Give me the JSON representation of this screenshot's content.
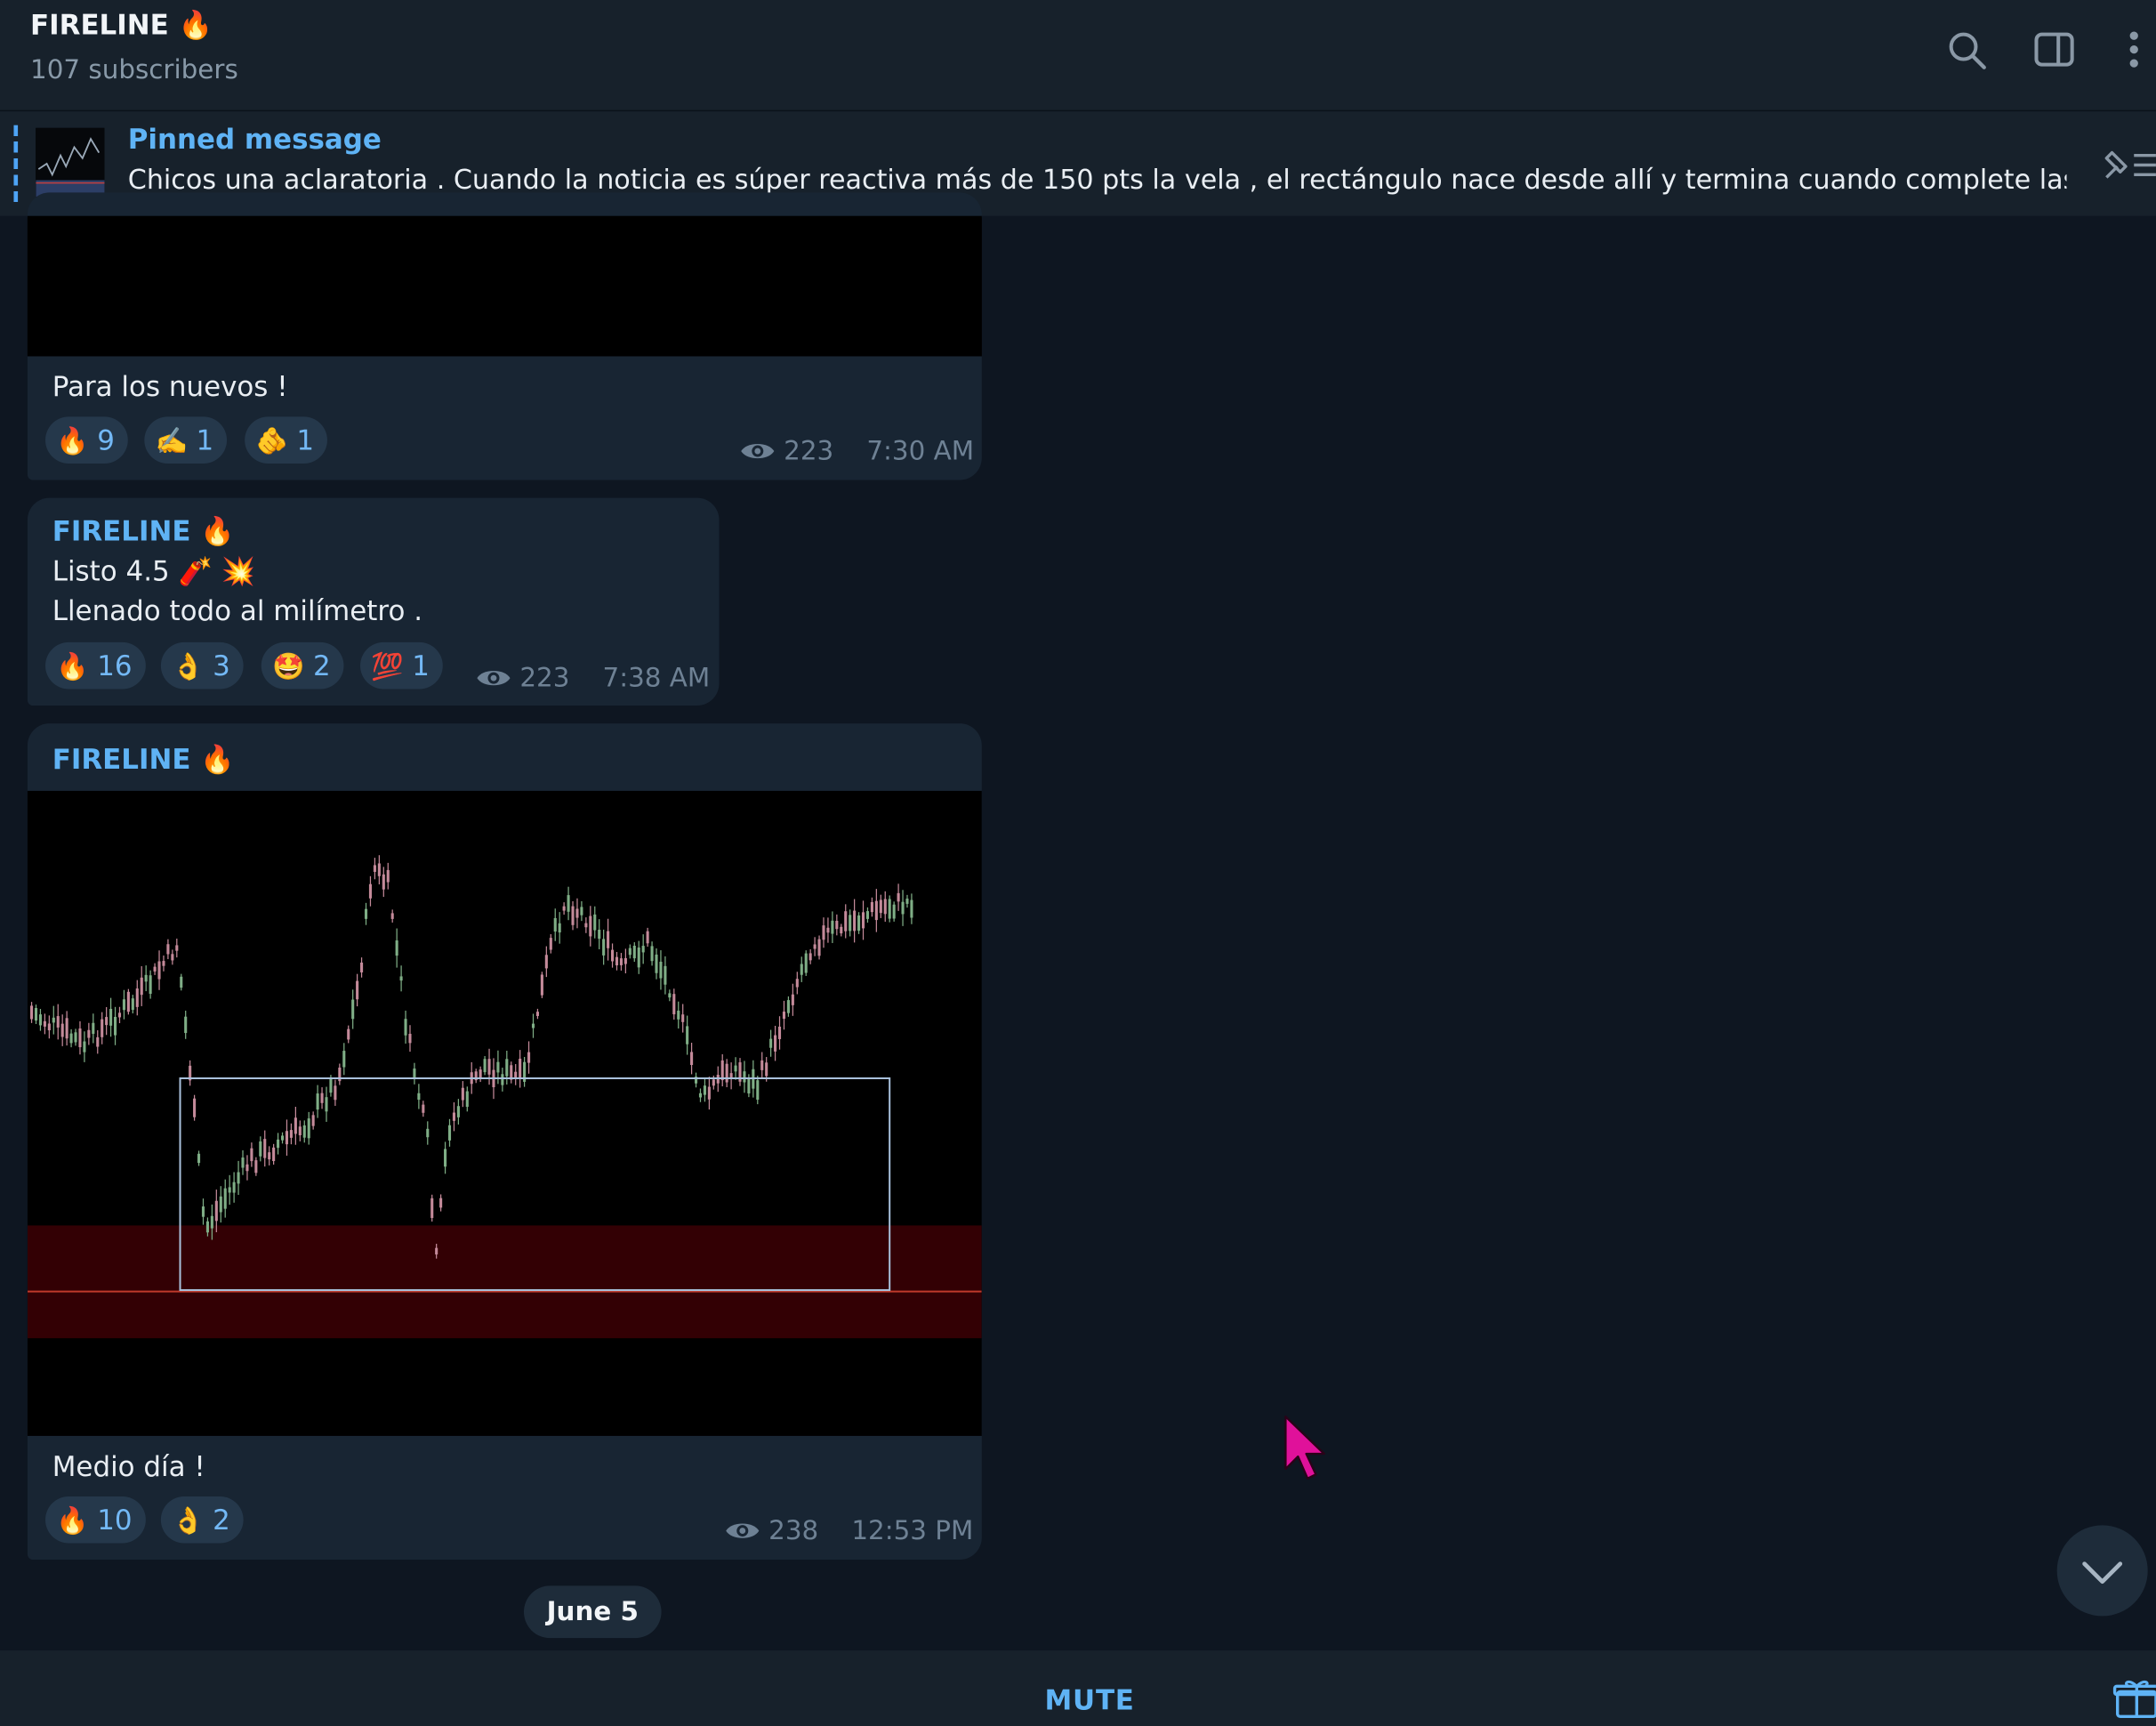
{
  "header": {
    "title": "FIRELINE 🔥",
    "subtitle": "107 subscribers"
  },
  "pinned": {
    "label": "Pinned message",
    "text": "Chicos una aclaratoria .  Cuando la noticia es súper reactiva más de 150 pts la vela , el rectángulo nace desde allí y termina cuando complete las..."
  },
  "messages": [
    {
      "text": "Para los nuevos !",
      "reactions": [
        {
          "emoji": "🔥",
          "count": "9"
        },
        {
          "emoji": "✍️",
          "count": "1"
        },
        {
          "emoji": "🫵",
          "count": "1"
        }
      ],
      "views": "223",
      "time": "7:30 AM"
    },
    {
      "sender": "FIRELINE 🔥",
      "lines": [
        "Listo 4.5 🧨 💥",
        "Llenado todo al milímetro ."
      ],
      "reactions": [
        {
          "emoji": "🔥",
          "count": "16"
        },
        {
          "emoji": "👌",
          "count": "3"
        },
        {
          "emoji": "🤩",
          "count": "2"
        },
        {
          "emoji": "💯",
          "count": "1"
        }
      ],
      "views": "223",
      "time": "7:38 AM"
    },
    {
      "sender": "FIRELINE 🔥",
      "text": "Medio día !",
      "reactions": [
        {
          "emoji": "🔥",
          "count": "10"
        },
        {
          "emoji": "👌",
          "count": "2"
        }
      ],
      "views": "238",
      "time": "12:53 PM"
    }
  ],
  "date_separator": "June 5",
  "bottom": {
    "mute_label": "MUTE"
  },
  "icons": {
    "search": "search-icon",
    "sidebar": "sidebar-toggle-icon",
    "more": "more-vertical-icon",
    "pin": "pin-list-icon",
    "eye": "eye-icon",
    "scroll_down": "chevron-down-icon",
    "gift": "gift-icon",
    "cursor": "mouse-cursor-icon"
  },
  "colors": {
    "background": "#0e1621",
    "panel": "#17212b",
    "bubble": "#182533",
    "accent": "#5fb3f5",
    "cursor": "#e0119a"
  }
}
